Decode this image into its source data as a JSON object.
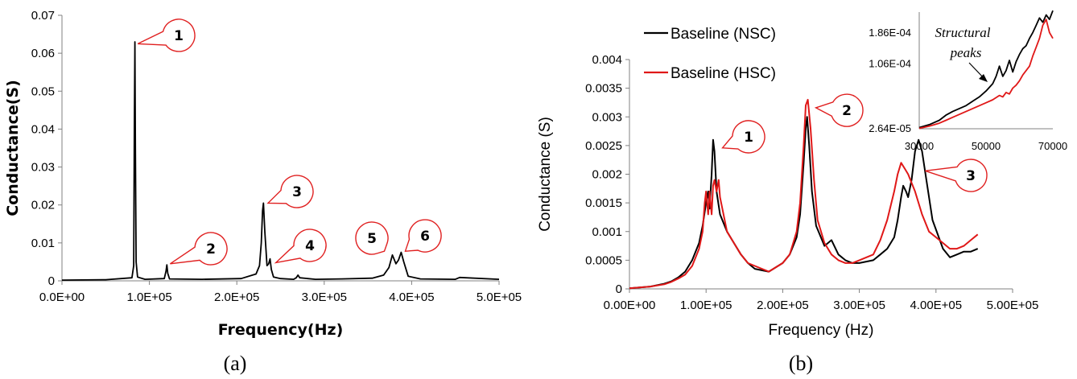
{
  "chart_data": [
    {
      "panel": "(a)",
      "type": "line",
      "xlabel": "Frequency(Hz)",
      "ylabel": "Conductance(S)",
      "xlim": [
        0,
        500000
      ],
      "ylim": [
        0,
        0.07
      ],
      "xticks": [
        "0.0E+00",
        "1.0E+05",
        "2.0E+05",
        "3.0E+05",
        "4.0E+05",
        "5.0E+05"
      ],
      "yticks": [
        "0",
        "0.01",
        "0.02",
        "0.03",
        "0.04",
        "0.05",
        "0.06",
        "0.07"
      ],
      "grid": false,
      "series": [
        {
          "color": "#000000",
          "x": [
            0,
            50000,
            80000,
            82000,
            82800,
            83400,
            84000,
            84800,
            86500,
            95000,
            117000,
            119000,
            120000,
            121000,
            123000,
            160000,
            205000,
            222000,
            226000,
            228000,
            229500,
            230500,
            232000,
            234500,
            236500,
            238000,
            239500,
            242000,
            250000,
            265000,
            268000,
            270000,
            272000,
            290000,
            320000,
            355000,
            368000,
            374000,
            378000,
            382000,
            385000,
            388000,
            391000,
            396000,
            410000,
            450000,
            455000,
            500000
          ],
          "y": [
            0.0002,
            0.0003,
            0.0008,
            0.004,
            0.04,
            0.063,
            0.035,
            0.005,
            0.001,
            0.0004,
            0.0006,
            0.0025,
            0.0042,
            0.002,
            0.0005,
            0.0004,
            0.0006,
            0.0018,
            0.004,
            0.01,
            0.0185,
            0.0205,
            0.013,
            0.004,
            0.0045,
            0.0058,
            0.003,
            0.001,
            0.0006,
            0.0004,
            0.0008,
            0.0015,
            0.0008,
            0.0004,
            0.0005,
            0.0007,
            0.0015,
            0.0035,
            0.0068,
            0.0045,
            0.0055,
            0.0075,
            0.005,
            0.0012,
            0.0005,
            0.0004,
            0.0009,
            0.0004
          ]
        }
      ],
      "annotations": [
        {
          "label": "1",
          "x": 84000,
          "y": 0.0625
        },
        {
          "label": "2",
          "x": 121000,
          "y": 0.0045
        },
        {
          "label": "3",
          "x": 233000,
          "y": 0.0205
        },
        {
          "label": "4",
          "x": 242000,
          "y": 0.0048
        },
        {
          "label": "5",
          "x": 366000,
          "y": 0.0078
        },
        {
          "label": "6",
          "x": 390000,
          "y": 0.0078
        }
      ]
    },
    {
      "panel": "(b)",
      "type": "line",
      "xlabel": "Frequency (Hz)",
      "ylabel": "Conductance (S)",
      "xlim": [
        0,
        550000
      ],
      "ylim": [
        0,
        0.004
      ],
      "xticks": [
        "0.00E+00",
        "1.00E+05",
        "2.00E+05",
        "3.00E+05",
        "4.00E+05",
        "5.00E+05"
      ],
      "yticks": [
        "0",
        "0.0005",
        "0.001",
        "0.0015",
        "0.002",
        "0.0025",
        "0.003",
        "0.0035",
        "0.004"
      ],
      "grid": false,
      "legend": "top-left",
      "series": [
        {
          "name": "Baseline (NSC)",
          "color": "#000000",
          "x": [
            0,
            30000,
            50000,
            60000,
            70000,
            80000,
            90000,
            100000,
            105000,
            110000,
            113000,
            115000,
            118000,
            120000,
            122000,
            125000,
            130000,
            140000,
            150000,
            160000,
            170000,
            180000,
            200000,
            220000,
            230000,
            240000,
            245000,
            250000,
            253000,
            255000,
            258000,
            262000,
            268000,
            280000,
            290000,
            300000,
            310000,
            320000,
            330000,
            350000,
            360000,
            370000,
            380000,
            385000,
            390000,
            393000,
            397000,
            400000,
            405000,
            410000,
            415000,
            420000,
            425000,
            435000,
            450000,
            460000,
            470000,
            480000,
            490000,
            500000
          ],
          "y": [
            1e-05,
            4e-05,
            9e-05,
            0.00013,
            0.0002,
            0.0003,
            0.0005,
            0.0008,
            0.0011,
            0.0015,
            0.0017,
            0.0014,
            0.002,
            0.0026,
            0.0024,
            0.0017,
            0.0013,
            0.001,
            0.0008,
            0.0006,
            0.00045,
            0.00035,
            0.0003,
            0.00045,
            0.0006,
            0.0009,
            0.0013,
            0.0022,
            0.0028,
            0.003,
            0.0025,
            0.0017,
            0.0011,
            0.00075,
            0.00085,
            0.0006,
            0.0005,
            0.00045,
            0.00045,
            0.0005,
            0.0006,
            0.0007,
            0.0009,
            0.0012,
            0.0016,
            0.0018,
            0.0017,
            0.0016,
            0.0019,
            0.0024,
            0.0026,
            0.0024,
            0.002,
            0.0012,
            0.0007,
            0.00055,
            0.0006,
            0.00065,
            0.00065,
            0.0007
          ]
        },
        {
          "name": "Baseline (HSC)",
          "color": "#e01818",
          "x": [
            0,
            30000,
            50000,
            60000,
            70000,
            80000,
            90000,
            100000,
            105000,
            108000,
            110000,
            113000,
            115000,
            118000,
            120000,
            122000,
            125000,
            128000,
            130000,
            140000,
            150000,
            160000,
            170000,
            180000,
            200000,
            220000,
            230000,
            240000,
            245000,
            250000,
            253000,
            256000,
            260000,
            265000,
            270000,
            280000,
            290000,
            300000,
            310000,
            320000,
            330000,
            350000,
            360000,
            370000,
            380000,
            385000,
            390000,
            395000,
            400000,
            410000,
            420000,
            430000,
            440000,
            450000,
            460000,
            470000,
            480000,
            490000,
            500000
          ],
          "y": [
            1e-05,
            4e-05,
            8e-05,
            0.00012,
            0.00018,
            0.00025,
            0.0004,
            0.0007,
            0.001,
            0.0015,
            0.0017,
            0.0013,
            0.0017,
            0.0013,
            0.0018,
            0.0019,
            0.0017,
            0.0019,
            0.0016,
            0.001,
            0.0008,
            0.0006,
            0.00045,
            0.0004,
            0.0003,
            0.00045,
            0.0006,
            0.001,
            0.0015,
            0.0025,
            0.0032,
            0.0033,
            0.0028,
            0.0019,
            0.0012,
            0.0008,
            0.0006,
            0.0005,
            0.00045,
            0.00045,
            0.0005,
            0.0006,
            0.00085,
            0.0012,
            0.0017,
            0.002,
            0.0022,
            0.0021,
            0.002,
            0.0017,
            0.0013,
            0.001,
            0.0009,
            0.0008,
            0.0007,
            0.0007,
            0.00075,
            0.00085,
            0.00095
          ]
        }
      ],
      "annotations": [
        {
          "label": "1",
          "x": 122000,
          "y": 0.0026
        },
        {
          "label": "2",
          "x": 256000,
          "y": 0.0033
        },
        {
          "label": "3",
          "x": 413000,
          "y": 0.0022
        }
      ],
      "inset": {
        "type": "line",
        "xlim": [
          30000,
          70000
        ],
        "ylim": [
          2.64e-05,
          0.000186
        ],
        "xticks": [
          "30000",
          "50000",
          "70000"
        ],
        "yticks": [
          "2.64E-05",
          "1.06E-04",
          "1.86E-04"
        ],
        "note": "Structural\npeaks",
        "series": [
          {
            "name": "Baseline (NSC)",
            "color": "#000000",
            "x": [
              30000,
              33000,
              36000,
              38000,
              40000,
              42000,
              44000,
              46000,
              48000,
              50000,
              52000,
              53000,
              54000,
              55000,
              56000,
              57000,
              58000,
              59000,
              60000,
              61000,
              62000,
              63000,
              64000,
              65000,
              66000,
              67000,
              68000,
              69000,
              70000
            ],
            "y": [
              2.8e-05,
              3.2e-05,
              3.8e-05,
              4.5e-05,
              5e-05,
              5.4e-05,
              5.8e-05,
              6.4e-05,
              7e-05,
              7.8e-05,
              8.8e-05,
              9.8e-05,
              0.000112,
              9.8e-05,
              0.000106,
              0.00012,
              0.000104,
              0.000118,
              0.000128,
              0.000136,
              0.00014,
              0.00015,
              0.000158,
              0.000168,
              0.000178,
              0.000172,
              0.000182,
              0.000176,
              0.000188
            ]
          },
          {
            "name": "Baseline (HSC)",
            "color": "#e01818",
            "x": [
              30000,
              33000,
              36000,
              38000,
              40000,
              42000,
              44000,
              46000,
              48000,
              50000,
              52000,
              54000,
              55000,
              56000,
              57000,
              58000,
              59000,
              60000,
              61000,
              62000,
              63000,
              64000,
              65000,
              66000,
              67000,
              68000,
              69000,
              70000
            ],
            "y": [
              2.7e-05,
              3e-05,
              3.4e-05,
              3.8e-05,
              4.2e-05,
              4.6e-05,
              5e-05,
              5.4e-05,
              5.8e-05,
              6.2e-05,
              6.6e-05,
              7.2e-05,
              7e-05,
              7.6e-05,
              7.4e-05,
              8.2e-05,
              8.6e-05,
              9.2e-05,
              0.0001,
              0.000106,
              0.000112,
              0.000126,
              0.000138,
              0.00015,
              0.000168,
              0.000176,
              0.000158,
              0.00015
            ]
          }
        ]
      }
    }
  ],
  "figure": {
    "panel_a_label": "(a)",
    "panel_b_label": "(b)"
  }
}
